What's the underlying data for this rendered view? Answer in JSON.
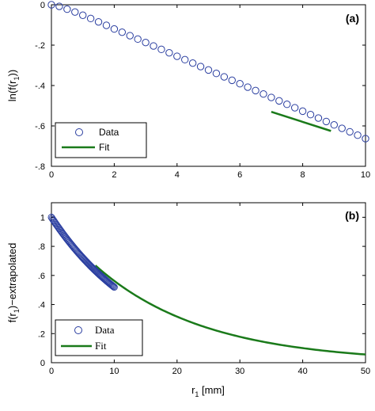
{
  "chart_data": [
    {
      "panel_label": "(a)",
      "type": "scatter",
      "xlim": [
        0,
        10
      ],
      "ylim": [
        -0.8,
        0
      ],
      "xticks": [
        0,
        2,
        4,
        6,
        8,
        10
      ],
      "yticks": [
        0,
        -0.2,
        -0.4,
        -0.6,
        -0.8
      ],
      "ylabel_main": "ln(f(r",
      "ylabel_sub": "1",
      "ylabel_end": "))",
      "legend": {
        "position": "bottom-left",
        "entries": [
          "Data",
          "Fit"
        ]
      },
      "series": [
        {
          "name": "Data",
          "marker": "circle",
          "x": [
            0,
            0.25,
            0.5,
            0.75,
            1,
            1.25,
            1.5,
            1.75,
            2,
            2.25,
            2.5,
            2.75,
            3,
            3.25,
            3.5,
            3.75,
            4,
            4.25,
            4.5,
            4.75,
            5,
            5.25,
            5.5,
            5.75,
            6,
            6.25,
            6.5,
            6.75,
            7,
            7.25,
            7.5,
            7.75,
            8,
            8.25,
            8.5,
            8.75,
            9,
            9.25,
            9.5,
            9.75,
            10
          ],
          "y": [
            0,
            -0.008,
            -0.022,
            -0.036,
            -0.052,
            -0.068,
            -0.085,
            -0.102,
            -0.12,
            -0.136,
            -0.153,
            -0.17,
            -0.187,
            -0.204,
            -0.221,
            -0.238,
            -0.255,
            -0.272,
            -0.289,
            -0.306,
            -0.323,
            -0.34,
            -0.357,
            -0.374,
            -0.391,
            -0.408,
            -0.425,
            -0.442,
            -0.459,
            -0.476,
            -0.493,
            -0.51,
            -0.527,
            -0.544,
            -0.561,
            -0.578,
            -0.595,
            -0.612,
            -0.629,
            -0.646,
            -0.663
          ]
        },
        {
          "name": "Fit",
          "type": "line",
          "x": [
            7.0,
            8.9
          ],
          "y": [
            -0.53,
            -0.625
          ]
        }
      ]
    },
    {
      "panel_label": "(b)",
      "type": "scatter",
      "xlabel_main": "r",
      "xlabel_sub": "1",
      "xlabel_end": " [mm]",
      "ylabel_main": "f(r",
      "ylabel_sub": "1",
      "ylabel_end": ")−extrapolated",
      "xlim": [
        0,
        50
      ],
      "ylim": [
        0,
        1.1
      ],
      "xticks": [
        0,
        10,
        20,
        30,
        40,
        50
      ],
      "yticks": [
        0,
        0.2,
        0.4,
        0.6,
        0.8,
        1
      ],
      "legend": {
        "position": "bottom-left",
        "entries": [
          "Data",
          "Fit"
        ]
      },
      "series": [
        {
          "name": "Data",
          "marker": "circle",
          "x_range": [
            0,
            10
          ],
          "note_point_count": 81,
          "model": "exp(-0.0655*x)"
        },
        {
          "name": "Fit",
          "type": "line",
          "x_range": [
            7,
            50
          ],
          "model": "exp(-0.0575*x)"
        }
      ]
    }
  ],
  "colors": {
    "data_marker": "#2a3ea0",
    "fit_line": "#1a7a1a",
    "axes": "#000000"
  }
}
